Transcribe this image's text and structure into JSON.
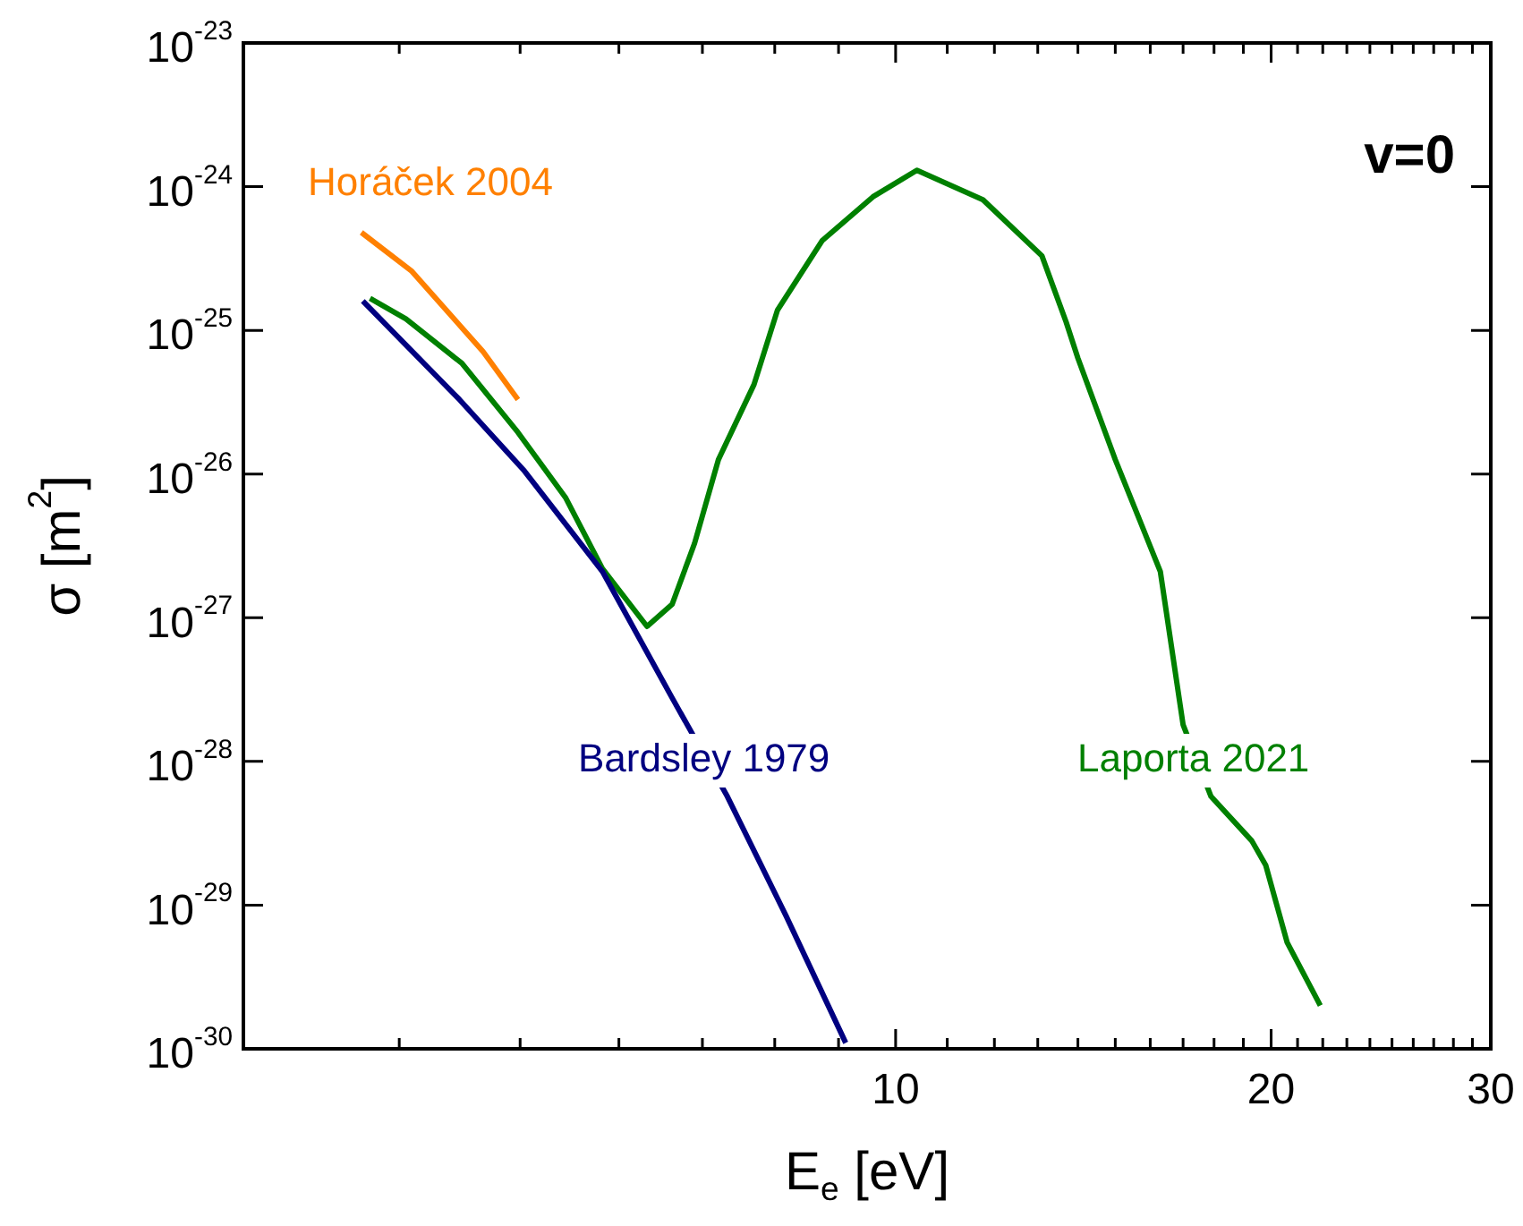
{
  "chart_data": {
    "type": "line",
    "xlabel": "E$_{e}$ [eV]",
    "ylabel": "σ [m$^{2}$]",
    "log": "xy",
    "legend": false,
    "grid": false,
    "marker": "none",
    "line_style": "solid",
    "xlim": [
      3,
      30
    ],
    "ylim": [
      1e-30,
      1e-23
    ],
    "xticks": [
      {
        "value": 4,
        "label": null
      },
      {
        "value": 5,
        "label": null
      },
      {
        "value": 6,
        "label": null
      },
      {
        "value": 7,
        "label": null
      },
      {
        "value": 8,
        "label": null
      },
      {
        "value": 9,
        "label": null
      },
      10,
      {
        "value": 11,
        "label": null
      },
      {
        "value": 12,
        "label": null
      },
      {
        "value": 13,
        "label": null
      },
      {
        "value": 14,
        "label": null
      },
      {
        "value": 15,
        "label": null
      },
      {
        "value": 16,
        "label": null
      },
      {
        "value": 17,
        "label": null
      },
      {
        "value": 18,
        "label": null
      },
      {
        "value": 19,
        "label": null
      },
      20,
      {
        "value": 21,
        "label": null
      },
      {
        "value": 22,
        "label": null
      },
      {
        "value": 23,
        "label": null
      },
      {
        "value": 24,
        "label": null
      },
      {
        "value": 25,
        "label": null
      },
      {
        "value": 26,
        "label": null
      },
      {
        "value": 27,
        "label": null
      },
      {
        "value": 28,
        "label": null
      },
      {
        "value": 29,
        "label": null
      },
      30
    ],
    "yticks": [
      {
        "value": 1e-30,
        "label": "10$^{-30}$"
      },
      {
        "value": 1e-29,
        "label": "10$^{-29}$"
      },
      {
        "value": 1e-28,
        "label": "10$^{-28}$"
      },
      {
        "value": 1e-27,
        "label": "10$^{-27}$"
      },
      {
        "value": 1e-26,
        "label": "10$^{-26}$"
      },
      {
        "value": 1e-25,
        "label": "10$^{-25}$"
      },
      {
        "value": 1e-24,
        "label": "10$^{-24}$"
      },
      {
        "value": 1e-23,
        "label": "10$^{-23}$"
      }
    ],
    "annotations": [
      "v=0"
    ],
    "series": [
      {
        "name": "Horáček 2004",
        "color": "#ff8000",
        "x": [
          3.73,
          4.09,
          4.51,
          4.67,
          4.98
        ],
        "values": [
          4.8e-25,
          2.6e-25,
          1e-25,
          7.1e-26,
          3.3e-26
        ]
      },
      {
        "name": "Bardsley 1979",
        "color": "#000080",
        "x": [
          3.74,
          4.47,
          5.04,
          5.82,
          6.6,
          7.33,
          8.17,
          9.12
        ],
        "values": [
          1.6e-25,
          3.3e-26,
          1.05e-26,
          2.1e-27,
          2.9e-28,
          5.7e-29,
          8.4e-30,
          1.1e-30
        ]
      },
      {
        "name": "Laporta 2021",
        "color": "#008000",
        "x": [
          3.79,
          4.05,
          4.49,
          4.98,
          5.44,
          5.82,
          6.32,
          6.62,
          6.9,
          7.21,
          7.7,
          8.04,
          8.73,
          9.59,
          10.4,
          11.75,
          13.1,
          13.7,
          14.0,
          15.0,
          16.3,
          17.0,
          17.9,
          19.3,
          19.8,
          20.6,
          21.9
        ],
        "values": [
          1.67e-25,
          1.2e-25,
          5.9e-26,
          1.95e-26,
          6.8e-27,
          2.2e-27,
          8.7e-28,
          1.24e-27,
          3.3e-27,
          1.26e-26,
          4.2e-26,
          1.38e-25,
          4.2e-25,
          8.5e-25,
          1.3e-24,
          8.1e-25,
          3.3e-25,
          1.14e-25,
          6.4e-26,
          1.26e-26,
          2.1e-27,
          1.8e-28,
          5.7e-29,
          2.8e-29,
          1.9e-29,
          5.5e-30,
          2e-30
        ]
      }
    ]
  }
}
